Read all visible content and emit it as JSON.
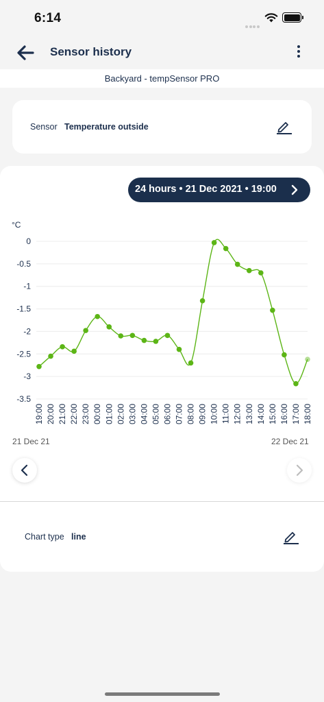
{
  "status": {
    "time": "6:14"
  },
  "header": {
    "title": "Sensor history"
  },
  "device": {
    "name": "Backyard - tempSensor PRO"
  },
  "sensor": {
    "label": "Sensor",
    "value": "Temperature outside"
  },
  "range": {
    "text": "24 hours • 21 Dec 2021 • 19:00"
  },
  "dates": {
    "start": "21 Dec 21",
    "end": "22 Dec 21"
  },
  "chart_type": {
    "label": "Chart type",
    "value": "line"
  },
  "chart_data": {
    "type": "line",
    "ylabel": "°C",
    "ylim": [
      -3.5,
      0
    ],
    "yticks": [
      0,
      -0.5,
      -1,
      -1.5,
      -2,
      -2.5,
      -3,
      -3.5
    ],
    "ytick_labels": [
      "0",
      "-0.5",
      "-1",
      "-1.5",
      "-2",
      "-2.5",
      "-3",
      "-3.5"
    ],
    "grid": true,
    "color": "#5cb516",
    "categories": [
      "19:00",
      "20:00",
      "21:00",
      "22:00",
      "23:00",
      "00:00",
      "01:00",
      "02:00",
      "03:00",
      "04:00",
      "05:00",
      "06:00",
      "07:00",
      "08:00",
      "09:00",
      "10:00",
      "11:00",
      "12:00",
      "13:00",
      "14:00",
      "15:00",
      "16:00",
      "17:00",
      "18:00"
    ],
    "values": [
      -2.78,
      -2.55,
      -2.34,
      -2.44,
      -1.98,
      -1.67,
      -1.9,
      -2.1,
      -2.09,
      -2.2,
      -2.22,
      -2.09,
      -2.4,
      -2.7,
      -1.32,
      -0.03,
      -0.16,
      -0.51,
      -0.65,
      -0.7,
      -1.53,
      -2.52,
      -3.16,
      -2.62
    ]
  }
}
